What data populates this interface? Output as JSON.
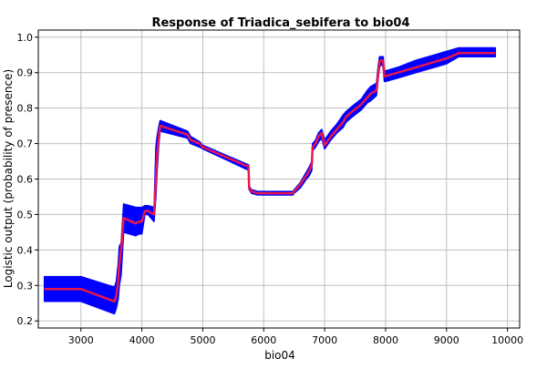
{
  "chart_data": {
    "type": "line",
    "title": "Response of Triadica_sebifera to bio04",
    "xlabel": "bio04",
    "ylabel": "Logistic output (probability of presence)",
    "xlim": [
      2300,
      10200
    ],
    "ylim": [
      0.18,
      1.02
    ],
    "x_ticks": [
      3000,
      4000,
      5000,
      6000,
      7000,
      8000,
      9000,
      10000
    ],
    "y_ticks": [
      0.2,
      0.3,
      0.4,
      0.5,
      0.6,
      0.7,
      0.8,
      0.9,
      1.0
    ],
    "grid": true,
    "colors": {
      "mean_line": "#e8174b",
      "band": "#0000ff",
      "grid": "#c0c0c0",
      "axis": "#000000"
    },
    "series": [
      {
        "name": "",
        "x": [
          2400,
          3000,
          3550,
          3580,
          3610,
          3630,
          3660,
          3700,
          3900,
          3950,
          4000,
          4050,
          4100,
          4200,
          4230,
          4250,
          4280,
          4300,
          4750,
          4800,
          4950,
          5000,
          5750,
          5760,
          5800,
          5900,
          6000,
          6200,
          6480,
          6500,
          6600,
          6700,
          6750,
          6790,
          6800,
          6850,
          6900,
          6950,
          7000,
          7020,
          7100,
          7200,
          7300,
          7350,
          7450,
          7600,
          7700,
          7750,
          7850,
          7880,
          7900,
          7920,
          7940,
          7960,
          7980,
          8000,
          8200,
          8500,
          8800,
          9000,
          9200,
          9800
        ],
        "y": [
          0.29,
          0.29,
          0.255,
          0.27,
          0.31,
          0.36,
          0.4,
          0.49,
          0.475,
          0.48,
          0.48,
          0.51,
          0.51,
          0.5,
          0.6,
          0.665,
          0.72,
          0.75,
          0.725,
          0.71,
          0.7,
          0.69,
          0.635,
          0.575,
          0.565,
          0.56,
          0.56,
          0.56,
          0.56,
          0.565,
          0.585,
          0.61,
          0.625,
          0.64,
          0.69,
          0.7,
          0.72,
          0.73,
          0.695,
          0.7,
          0.72,
          0.74,
          0.76,
          0.775,
          0.79,
          0.81,
          0.83,
          0.84,
          0.85,
          0.9,
          0.93,
          0.935,
          0.935,
          0.93,
          0.89,
          0.89,
          0.9,
          0.915,
          0.93,
          0.94,
          0.955,
          0.955
        ],
        "upper": [
          0.325,
          0.325,
          0.295,
          0.31,
          0.36,
          0.41,
          0.42,
          0.53,
          0.52,
          0.52,
          0.52,
          0.525,
          0.525,
          0.52,
          0.69,
          0.72,
          0.75,
          0.765,
          0.735,
          0.72,
          0.705,
          0.695,
          0.64,
          0.58,
          0.57,
          0.565,
          0.565,
          0.565,
          0.565,
          0.57,
          0.59,
          0.62,
          0.635,
          0.65,
          0.7,
          0.71,
          0.73,
          0.74,
          0.71,
          0.715,
          0.735,
          0.755,
          0.78,
          0.79,
          0.805,
          0.825,
          0.85,
          0.86,
          0.87,
          0.92,
          0.945,
          0.945,
          0.945,
          0.945,
          0.905,
          0.905,
          0.915,
          0.935,
          0.95,
          0.96,
          0.97,
          0.97
        ],
        "lower": [
          0.255,
          0.255,
          0.22,
          0.235,
          0.26,
          0.3,
          0.33,
          0.45,
          0.44,
          0.445,
          0.445,
          0.5,
          0.5,
          0.48,
          0.55,
          0.62,
          0.7,
          0.735,
          0.715,
          0.7,
          0.69,
          0.685,
          0.625,
          0.57,
          0.56,
          0.555,
          0.555,
          0.555,
          0.555,
          0.56,
          0.575,
          0.6,
          0.61,
          0.625,
          0.68,
          0.69,
          0.705,
          0.715,
          0.685,
          0.69,
          0.71,
          0.73,
          0.745,
          0.76,
          0.775,
          0.795,
          0.815,
          0.82,
          0.835,
          0.885,
          0.915,
          0.92,
          0.925,
          0.915,
          0.875,
          0.875,
          0.885,
          0.9,
          0.915,
          0.925,
          0.945,
          0.945
        ]
      }
    ]
  }
}
